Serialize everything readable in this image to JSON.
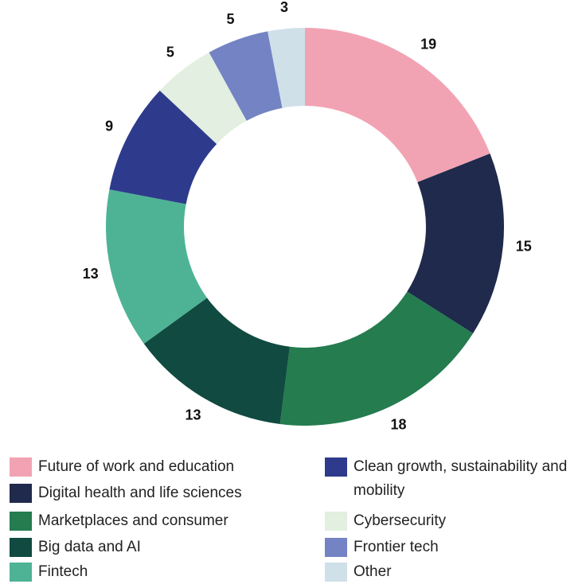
{
  "chart_data": {
    "type": "pie",
    "categories": [
      "Future of work and education",
      "Digital health and life sciences",
      "Marketplaces and consumer",
      "Big data and AI",
      "Fintech",
      "Clean growth, sustainability and mobility",
      "Cybersecurity",
      "Frontier tech",
      "Other"
    ],
    "values": [
      19,
      15,
      18,
      13,
      13,
      9,
      5,
      5,
      3
    ],
    "colors": [
      "#f2a3b3",
      "#1f2a4c",
      "#247c4f",
      "#104a40",
      "#4db394",
      "#2e3b8c",
      "#e3efe0",
      "#7383c4",
      "#cfe0e9"
    ]
  }
}
